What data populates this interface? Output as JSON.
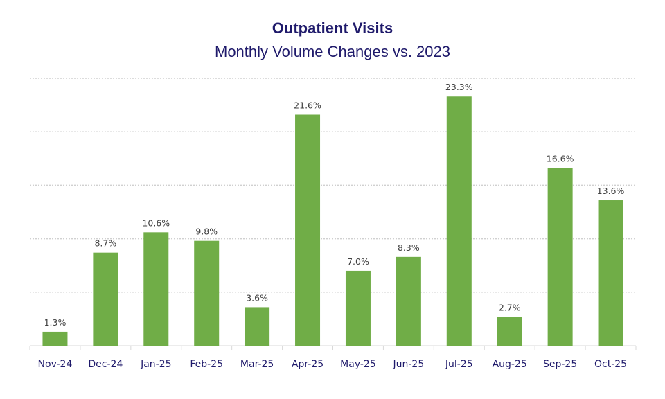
{
  "chart_data": {
    "type": "bar",
    "title": "Outpatient Visits",
    "subtitle": "Monthly Volume Changes vs. 2023",
    "xlabel": "",
    "ylabel": "",
    "categories": [
      "Nov-24",
      "Dec-24",
      "Jan-25",
      "Feb-25",
      "Mar-25",
      "Apr-25",
      "May-25",
      "Jun-25",
      "Jul-25",
      "Aug-25",
      "Sep-25",
      "Oct-25"
    ],
    "values": [
      1.3,
      8.7,
      10.6,
      9.8,
      3.6,
      21.6,
      7.0,
      8.3,
      23.3,
      2.7,
      16.6,
      13.6
    ],
    "data_labels": [
      "1.3%",
      "8.7%",
      "10.6%",
      "9.8%",
      "3.6%",
      "21.6%",
      "7.0%",
      "8.3%",
      "23.3%",
      "2.7%",
      "16.6%",
      "13.6%"
    ],
    "ylim": [
      0,
      25
    ],
    "y_gridlines": [
      5,
      10,
      15,
      20,
      25
    ],
    "grid": "horizontal dotted",
    "y_axis_labels_shown": false,
    "legend": "none",
    "colors": {
      "bar": "#70ad47",
      "title": "#1f1a6b",
      "grid": "#d0d0d0",
      "data_label": "#404040"
    }
  }
}
